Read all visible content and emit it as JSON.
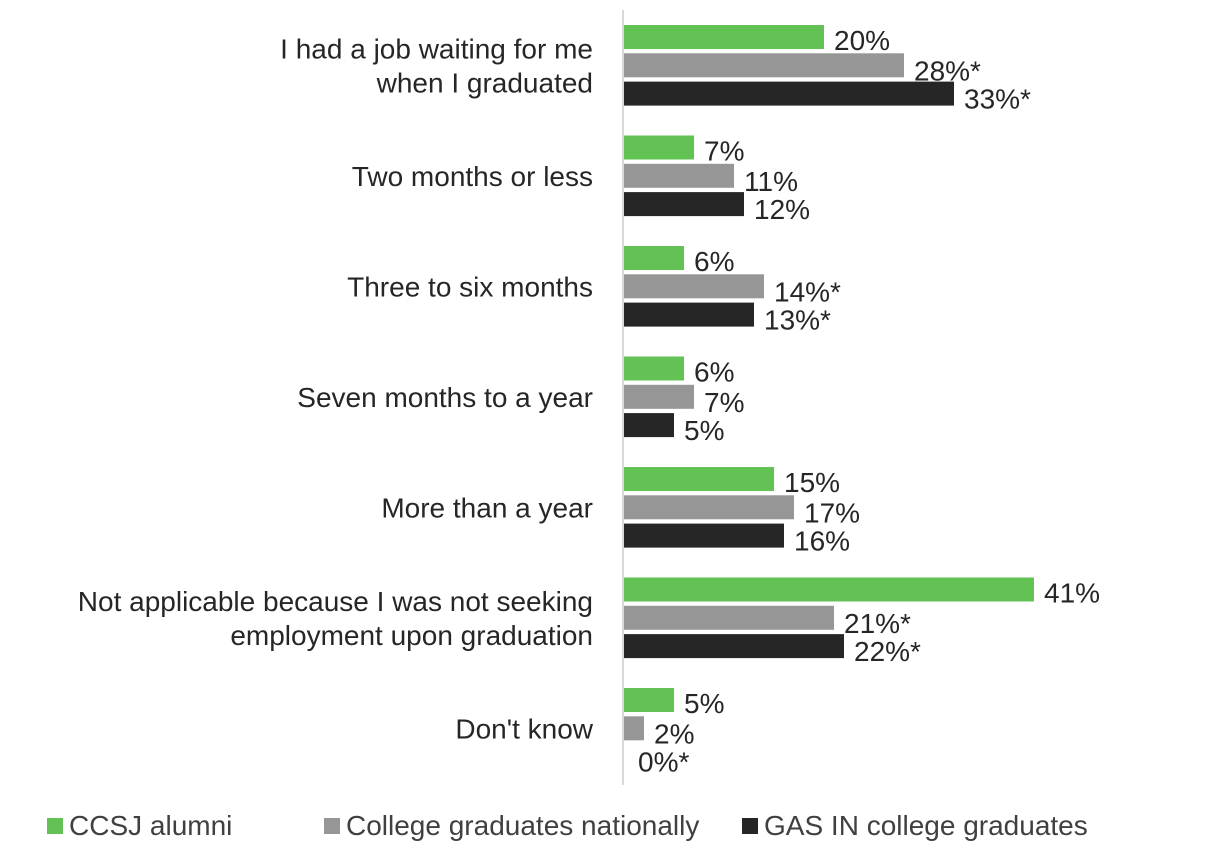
{
  "chart_data": {
    "type": "bar",
    "orientation": "horizontal",
    "categories": [
      [
        "I had a job waiting for me",
        "when I graduated"
      ],
      [
        "Two months or less"
      ],
      [
        "Three to six months"
      ],
      [
        "Seven months to a year"
      ],
      [
        "More than a year"
      ],
      [
        "Not applicable because I was not seeking",
        "employment upon graduation"
      ],
      [
        "Don't know"
      ]
    ],
    "series": [
      {
        "name": "CCSJ alumni",
        "color": "#62c354",
        "values": [
          20,
          7,
          6,
          6,
          15,
          41,
          5
        ],
        "labels": [
          "20%",
          "7%",
          "6%",
          "6%",
          "15%",
          "41%",
          "5%"
        ]
      },
      {
        "name": "College graduates nationally",
        "color": "#969696",
        "values": [
          28,
          11,
          14,
          7,
          17,
          21,
          2
        ],
        "labels": [
          "28%*",
          "11%",
          "14%*",
          "7%",
          "17%",
          "21%*",
          "2%"
        ]
      },
      {
        "name": "GAS IN college graduates",
        "color": "#262626",
        "values": [
          33,
          12,
          13,
          5,
          16,
          22,
          0
        ],
        "labels": [
          "33%*",
          "12%",
          "13%*",
          "5%",
          "16%",
          "22%*",
          "0%*"
        ]
      }
    ],
    "xlim": [
      0,
      41
    ],
    "grid": false,
    "legend_position": "bottom"
  }
}
